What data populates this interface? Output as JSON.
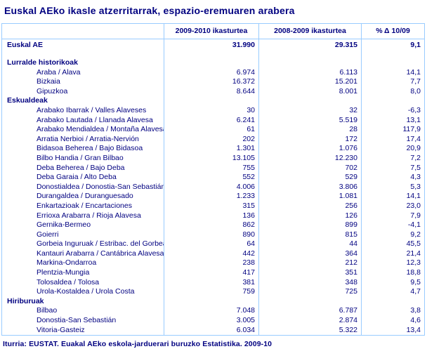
{
  "title": "Euskal AEko ikasle atzerritarrak, espazio-eremuaren arabera",
  "footer": "Iturria: EUSTAT. Euakal AEko eskola-jarduerari buruzko Estatistika. 2009-10",
  "colors": {
    "text_navy": "#000080",
    "border_light_blue": "#99CCFF",
    "background": "#ffffff"
  },
  "chart_data": {
    "type": "table",
    "title": "Euskal AEko ikasle atzerritarrak, espazio-eremuaren arabera",
    "columns": [
      "2009-2010 ikasturtea",
      "2008-2009 ikasturtea",
      "% Δ  10/09"
    ],
    "rows": [
      {
        "kind": "total",
        "label": "Euskal AE",
        "values": [
          "31.990",
          "29.315",
          "9,1"
        ]
      },
      {
        "kind": "spacer",
        "label": "",
        "values": [
          "",
          "",
          ""
        ]
      },
      {
        "kind": "section",
        "label": "Lurralde historikoak",
        "values": [
          "",
          "",
          ""
        ]
      },
      {
        "kind": "item",
        "label": "Araba / Alava",
        "values": [
          "6.974",
          "6.113",
          "14,1"
        ]
      },
      {
        "kind": "item",
        "label": "Bizkaia",
        "values": [
          "16.372",
          "15.201",
          "7,7"
        ]
      },
      {
        "kind": "item",
        "label": "Gipuzkoa",
        "values": [
          "8.644",
          "8.001",
          "8,0"
        ]
      },
      {
        "kind": "section",
        "label": "Eskualdeak",
        "values": [
          "",
          "",
          ""
        ]
      },
      {
        "kind": "item",
        "label": "Arabako Ibarrak / Valles Alaveses",
        "values": [
          "30",
          "32",
          "-6,3"
        ]
      },
      {
        "kind": "item",
        "label": "Arabako Lautada / Llanada Alavesa",
        "values": [
          "6.241",
          "5.519",
          "13,1"
        ]
      },
      {
        "kind": "item",
        "label": "Arabako Mendialdea /  Montaña Alavesa",
        "values": [
          "61",
          "28",
          "117,9"
        ]
      },
      {
        "kind": "item",
        "label": "Arratia Nerbioi / Arratia-Nervión",
        "values": [
          "202",
          "172",
          "17,4"
        ]
      },
      {
        "kind": "item",
        "label": "Bidasoa Beherea / Bajo Bidasoa",
        "values": [
          "1.301",
          "1.076",
          "20,9"
        ]
      },
      {
        "kind": "item",
        "label": "Bilbo Handia / Gran Bilbao",
        "values": [
          "13.105",
          "12.230",
          "7,2"
        ]
      },
      {
        "kind": "item",
        "label": "Deba Beherea / Bajo Deba",
        "values": [
          "755",
          "702",
          "7,5"
        ]
      },
      {
        "kind": "item",
        "label": "Deba Garaia / Alto Deba",
        "values": [
          "552",
          "529",
          "4,3"
        ]
      },
      {
        "kind": "item",
        "label": "Donostialdea / Donostia-San Sebastián",
        "values": [
          "4.006",
          "3.806",
          "5,3"
        ]
      },
      {
        "kind": "item",
        "label": "Durangaldea / Duranguesado",
        "values": [
          "1.233",
          "1.081",
          "14,1"
        ]
      },
      {
        "kind": "item",
        "label": "Enkartazioak / Encartaciones",
        "values": [
          "315",
          "256",
          "23,0"
        ]
      },
      {
        "kind": "item",
        "label": "Errioxa Arabarra / Rioja Alavesa",
        "values": [
          "136",
          "126",
          "7,9"
        ]
      },
      {
        "kind": "item",
        "label": "Gernika-Bermeo",
        "values": [
          "862",
          "899",
          "-4,1"
        ]
      },
      {
        "kind": "item",
        "label": "Goierri",
        "values": [
          "890",
          "815",
          "9,2"
        ]
      },
      {
        "kind": "item",
        "label": "Gorbeia Inguruak / Estribac. del Gorbea",
        "values": [
          "64",
          "44",
          "45,5"
        ]
      },
      {
        "kind": "item",
        "label": "Kantauri Arabarra / Cantábrica Alavesa",
        "values": [
          "442",
          "364",
          "21,4"
        ]
      },
      {
        "kind": "item",
        "label": "Markina-Ondarroa",
        "values": [
          "238",
          "212",
          "12,3"
        ]
      },
      {
        "kind": "item",
        "label": "Plentzia-Mungia",
        "values": [
          "417",
          "351",
          "18,8"
        ]
      },
      {
        "kind": "item",
        "label": "Tolosaldea / Tolosa",
        "values": [
          "381",
          "348",
          "9,5"
        ]
      },
      {
        "kind": "item",
        "label": "Urola-Kostaldea / Urola Costa",
        "values": [
          "759",
          "725",
          "4,7"
        ]
      },
      {
        "kind": "section",
        "label": "Hiriburuak",
        "values": [
          "",
          "",
          ""
        ]
      },
      {
        "kind": "item",
        "label": "Bilbao",
        "values": [
          "7.048",
          "6.787",
          "3,8"
        ]
      },
      {
        "kind": "item",
        "label": "Donostia-San Sebastián",
        "values": [
          "3.005",
          "2.874",
          "4,6"
        ]
      },
      {
        "kind": "item",
        "label": "Vitoria-Gasteiz",
        "values": [
          "6.034",
          "5.322",
          "13,4"
        ]
      }
    ],
    "source": "Iturria: EUSTAT. Euakal AEko eskola-jarduerari buruzko Estatistika. 2009-10"
  }
}
